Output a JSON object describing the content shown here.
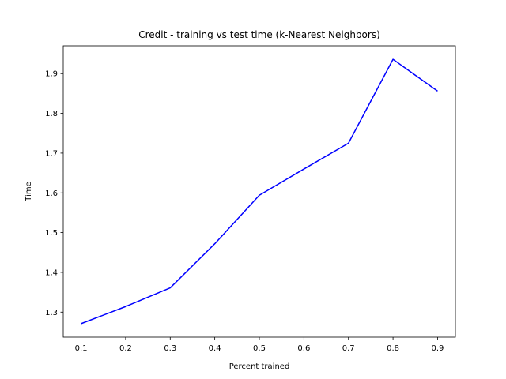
{
  "chart_data": {
    "type": "line",
    "title": "Credit - training vs test time (k-Nearest Neighbors)",
    "xlabel": "Percent trained",
    "ylabel": "Time",
    "xlim": [
      0.06,
      0.94
    ],
    "ylim": [
      1.237,
      1.97
    ],
    "x_ticks": [
      "0.1",
      "0.2",
      "0.3",
      "0.4",
      "0.5",
      "0.6",
      "0.7",
      "0.8",
      "0.9"
    ],
    "y_ticks": [
      "1.3",
      "1.4",
      "1.5",
      "1.6",
      "1.7",
      "1.8",
      "1.9"
    ],
    "grid": false,
    "series": [
      {
        "color": "#0000ff",
        "x": [
          0.1,
          0.2,
          0.3,
          0.4,
          0.5,
          0.6,
          0.7,
          0.8,
          0.9
        ],
        "y": [
          1.271,
          1.314,
          1.361,
          1.472,
          1.594,
          1.66,
          1.725,
          1.936,
          1.856
        ]
      }
    ]
  }
}
